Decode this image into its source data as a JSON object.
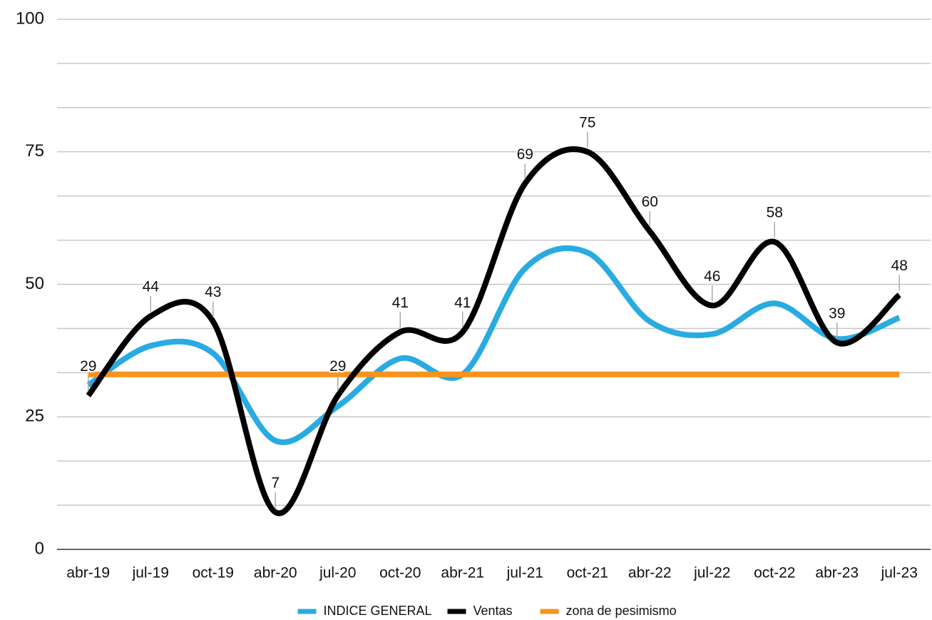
{
  "chart_data": {
    "type": "line",
    "categories": [
      "abr-19",
      "jul-19",
      "oct-19",
      "abr-20",
      "jul-20",
      "oct-20",
      "abr-21",
      "jul-21",
      "oct-21",
      "abr-22",
      "jul-22",
      "oct-22",
      "abr-23",
      "jul-23"
    ],
    "series": [
      {
        "name": "INDICE GENERAL",
        "color": "#29abe2",
        "values": [
          31,
          38.4,
          37,
          20.5,
          27,
          36,
          33,
          53,
          56,
          43,
          40.6,
          46.4,
          39.7,
          43.7
        ]
      },
      {
        "name": "Ventas",
        "color": "#000000",
        "values": [
          29,
          44,
          43,
          7,
          29,
          41,
          41,
          69,
          75,
          60,
          46,
          58,
          39,
          48
        ],
        "data_labels": true
      },
      {
        "name": "zona de pesimismo",
        "color": "#f7941d",
        "values": [
          33,
          33,
          33,
          33,
          33,
          33,
          33,
          33,
          33,
          33,
          33,
          33,
          33,
          33
        ]
      }
    ],
    "ylim": [
      0,
      100
    ],
    "yticks": [
      0,
      25,
      50,
      75,
      100
    ],
    "minor_yticks": [
      8.33,
      16.67,
      33.33,
      41.67,
      58.33,
      66.67,
      83.33,
      91.67
    ],
    "grid": true,
    "smooth": true,
    "legend": "bottom"
  }
}
